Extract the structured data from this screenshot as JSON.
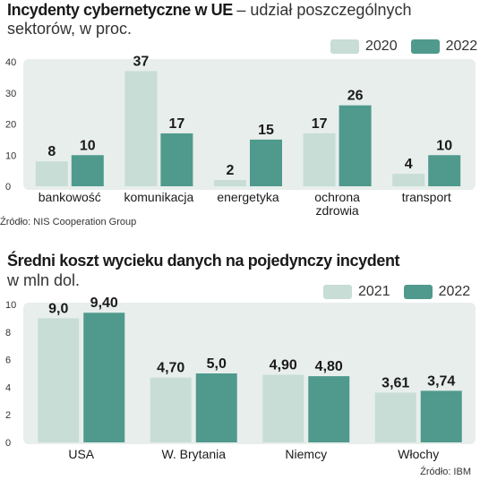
{
  "chart_data": [
    {
      "type": "bar",
      "title": "Incydenty cybernetyczne w UE",
      "subtitle": "– udział poszczególnych sektorów, w proc.",
      "subtitle_parts": [
        "– udział poszczególnych",
        "sektorów, w proc."
      ],
      "categories": [
        "bankowość",
        "komunikacja",
        "energetyka",
        "ochrona\nzdrowia",
        "transport"
      ],
      "series": [
        {
          "name": "2020",
          "values": [
            8,
            37,
            2,
            17,
            4
          ],
          "labels": [
            "8",
            "37",
            "2",
            "17",
            "4"
          ]
        },
        {
          "name": "2022",
          "values": [
            10,
            17,
            15,
            26,
            10
          ],
          "labels": [
            "10",
            "17",
            "15",
            "26",
            "10"
          ]
        }
      ],
      "yticks": [
        "0",
        "10",
        "20",
        "30",
        "40"
      ],
      "ylim": [
        0,
        40
      ],
      "legend": "top-right",
      "grid": false,
      "source": "Źródło: NIS Cooperation Group",
      "colors": {
        "series1": "#c7ddd6",
        "series2": "#4f9a8c",
        "plot_bg": "#e8eeec"
      }
    },
    {
      "type": "bar",
      "title": "Średni koszt wycieku danych na pojedynczy incydent",
      "subtitle": "w mln dol.",
      "categories": [
        "USA",
        "W. Brytania",
        "Niemcy",
        "Włochy"
      ],
      "series": [
        {
          "name": "2021",
          "values": [
            9.0,
            4.7,
            4.9,
            3.61
          ],
          "labels": [
            "9,0",
            "4,70",
            "4,90",
            "3,61"
          ]
        },
        {
          "name": "2022",
          "values": [
            9.4,
            5.0,
            4.8,
            3.74
          ],
          "labels": [
            "9,40",
            "5,0",
            "4,80",
            "3,74"
          ]
        }
      ],
      "yticks": [
        "0",
        "2",
        "4",
        "6",
        "8",
        "10"
      ],
      "ylim": [
        0,
        10
      ],
      "legend": "top-right",
      "grid": false,
      "source": "Źródło: IBM",
      "colors": {
        "series1": "#c7ddd6",
        "series2": "#4f9a8c",
        "plot_bg": "#e8eeec"
      }
    }
  ]
}
